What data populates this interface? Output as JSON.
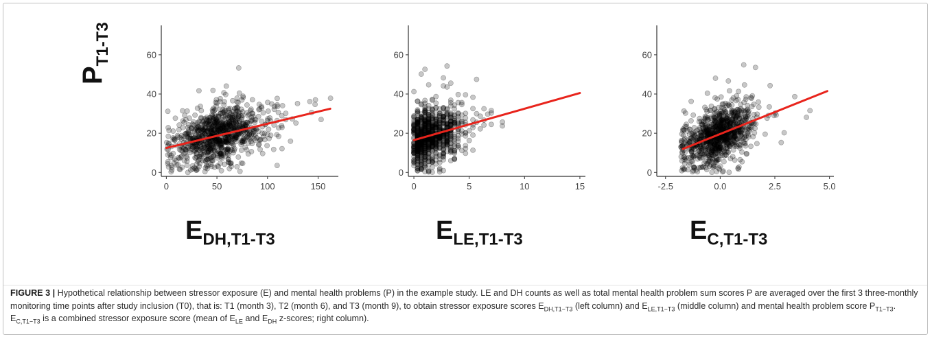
{
  "figure": {
    "label": "FIGURE 3 |",
    "caption_parts": [
      {
        "t": " Hypothetical relationship between stressor exposure (E) and mental health problems (P) in the example study. LE and DH counts as well as total mental health problem sum scores P are averaged over the first 3 three-monthly monitoring time points after study inclusion (T0), that is: T1 (month 3), T2 (month 6), and T3 (month 9), to obtain stressor exposure scores E"
      },
      {
        "sub": "DH,T1−T3"
      },
      {
        "t": " (left column) and E"
      },
      {
        "sub": "LE,T1−T3"
      },
      {
        "t": " (middle column) and mental health problem score P"
      },
      {
        "sub": "T1−T3"
      },
      {
        "t": ". E"
      },
      {
        "sub": "C,T1−T3"
      },
      {
        "t": " is a combined stressor exposure score (mean of E"
      },
      {
        "sub": "LE"
      },
      {
        "t": " and E"
      },
      {
        "sub": "DH"
      },
      {
        "t": " z-scores; right column)."
      }
    ]
  },
  "ylabel": {
    "main": "P",
    "sub": "T1-T3"
  },
  "colors": {
    "points": "#000000",
    "regression": "#e8241c",
    "axis": "#333333"
  },
  "chart_data": [
    {
      "type": "scatter",
      "xlabel": {
        "main": "E",
        "sub": "DH,T1-T3"
      },
      "ylabel": "P T1-T3",
      "xlim": [
        -5,
        170
      ],
      "ylim": [
        -2,
        75
      ],
      "xticks": [
        0,
        50,
        100,
        150
      ],
      "xtick_labels": [
        "0",
        "50",
        "100",
        "150"
      ],
      "yticks": [
        0,
        20,
        40,
        60
      ],
      "ytick_labels": [
        "0",
        "20",
        "40",
        "60"
      ],
      "regression_line": {
        "x": [
          0,
          162
        ],
        "y": [
          12.5,
          32.5
        ]
      },
      "grid": false,
      "distribution": {
        "kind": "gamma-like",
        "n": 950,
        "x_center": 52,
        "x_spread": 25,
        "y_intercept": 12.5,
        "y_slope": 0.123,
        "y_noise": 7
      }
    },
    {
      "type": "scatter",
      "xlabel": {
        "main": "E",
        "sub": "LE,T1-T3"
      },
      "ylabel": "",
      "xlim": [
        -0.5,
        15.5
      ],
      "ylim": [
        -2,
        75
      ],
      "xticks": [
        0,
        5,
        10,
        15
      ],
      "xtick_labels": [
        "0",
        "5",
        "10",
        "15"
      ],
      "yticks": [
        0,
        20,
        40,
        60
      ],
      "ytick_labels": [
        "0",
        "20",
        "40",
        "60"
      ],
      "regression_line": {
        "x": [
          0,
          15
        ],
        "y": [
          16.5,
          40.5
        ]
      },
      "grid": false,
      "distribution": {
        "kind": "discrete-columns",
        "n": 950,
        "x_center": 2,
        "x_spread": 1.6,
        "y_intercept": 16.5,
        "y_slope": 1.6,
        "y_noise": 7
      }
    },
    {
      "type": "scatter",
      "xlabel": {
        "main": "E",
        "sub": "C,T1-T3"
      },
      "ylabel": "",
      "xlim": [
        -2.9,
        5.2
      ],
      "ylim": [
        -2,
        75
      ],
      "xticks": [
        -2.5,
        0.0,
        2.5,
        5.0
      ],
      "xtick_labels": [
        "-2.5",
        "0.0",
        "2.5",
        "5.0"
      ],
      "yticks": [
        0,
        20,
        40,
        60
      ],
      "ytick_labels": [
        "0",
        "20",
        "40",
        "60"
      ],
      "regression_line": {
        "x": [
          -1.7,
          4.9
        ],
        "y": [
          12,
          41.5
        ]
      },
      "grid": false,
      "distribution": {
        "kind": "normal",
        "n": 950,
        "x_center": -0.1,
        "x_spread": 0.75,
        "y_intercept": 19.6,
        "y_slope": 4.47,
        "y_noise": 7
      }
    }
  ]
}
